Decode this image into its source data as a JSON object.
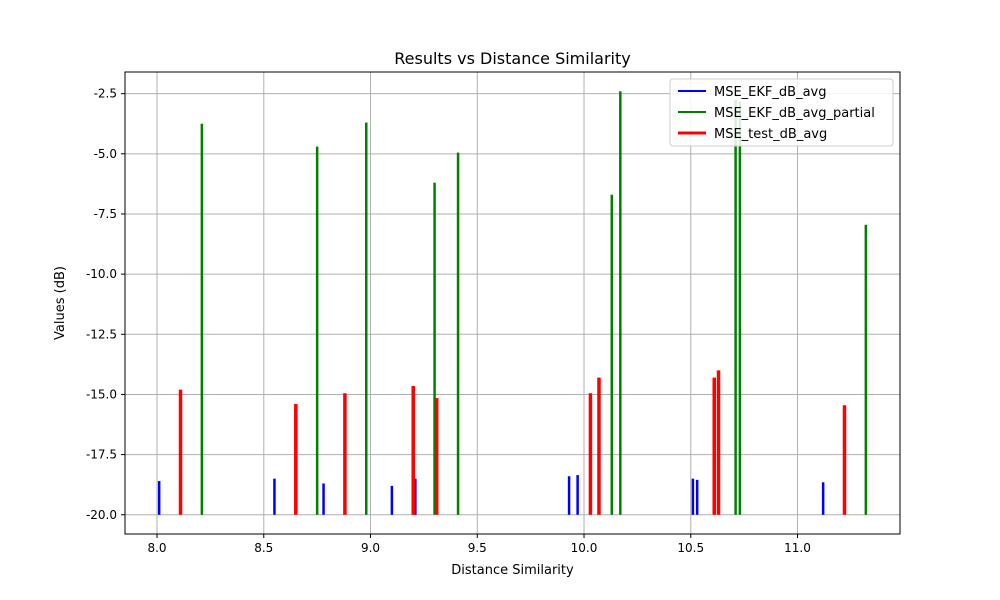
{
  "chart_data": {
    "type": "bar",
    "title": "Results vs Distance Similarity",
    "xlabel": "Distance Similarity",
    "ylabel": "Values (dB)",
    "xlim": [
      7.85,
      11.48
    ],
    "ylim": [
      -20.8,
      -1.6
    ],
    "baseline": -20,
    "xticks": [
      "8.0",
      "8.5",
      "9.0",
      "9.5",
      "10.0",
      "10.5",
      "11.0"
    ],
    "yticks": [
      "-20.0",
      "-17.5",
      "-15.0",
      "-12.5",
      "-10.0",
      "-7.5",
      "-5.0",
      "-2.5"
    ],
    "grid": true,
    "legend_position": "top-right",
    "series": [
      {
        "name": "MSE_EKF_dB_avg",
        "color": "#0000ff",
        "points": [
          {
            "x": 8.01,
            "y": -18.6
          },
          {
            "x": 8.55,
            "y": -18.5
          },
          {
            "x": 8.78,
            "y": -18.7
          },
          {
            "x": 9.1,
            "y": -18.8
          },
          {
            "x": 9.21,
            "y": -18.5
          },
          {
            "x": 9.93,
            "y": -18.4
          },
          {
            "x": 9.97,
            "y": -18.35
          },
          {
            "x": 10.51,
            "y": -18.5
          },
          {
            "x": 10.53,
            "y": -18.55
          },
          {
            "x": 11.12,
            "y": -18.65
          }
        ]
      },
      {
        "name": "MSE_EKF_dB_avg_partial",
        "color": "#008000",
        "points": [
          {
            "x": 8.21,
            "y": -3.75
          },
          {
            "x": 8.75,
            "y": -4.7
          },
          {
            "x": 8.98,
            "y": -3.7
          },
          {
            "x": 9.3,
            "y": -6.2
          },
          {
            "x": 9.41,
            "y": -4.95
          },
          {
            "x": 10.13,
            "y": -6.7
          },
          {
            "x": 10.17,
            "y": -2.4
          },
          {
            "x": 10.71,
            "y": -2.75
          },
          {
            "x": 10.73,
            "y": -2.85
          },
          {
            "x": 11.32,
            "y": -7.95
          }
        ]
      },
      {
        "name": "MSE_test_dB_avg",
        "color": "#ff0000",
        "points": [
          {
            "x": 8.11,
            "y": -14.8
          },
          {
            "x": 8.65,
            "y": -15.4
          },
          {
            "x": 8.88,
            "y": -14.95
          },
          {
            "x": 9.2,
            "y": -14.65
          },
          {
            "x": 9.31,
            "y": -15.15
          },
          {
            "x": 10.03,
            "y": -14.95
          },
          {
            "x": 10.07,
            "y": -14.3
          },
          {
            "x": 10.61,
            "y": -14.3
          },
          {
            "x": 10.63,
            "y": -14.0
          },
          {
            "x": 11.22,
            "y": -15.45
          }
        ]
      }
    ]
  }
}
